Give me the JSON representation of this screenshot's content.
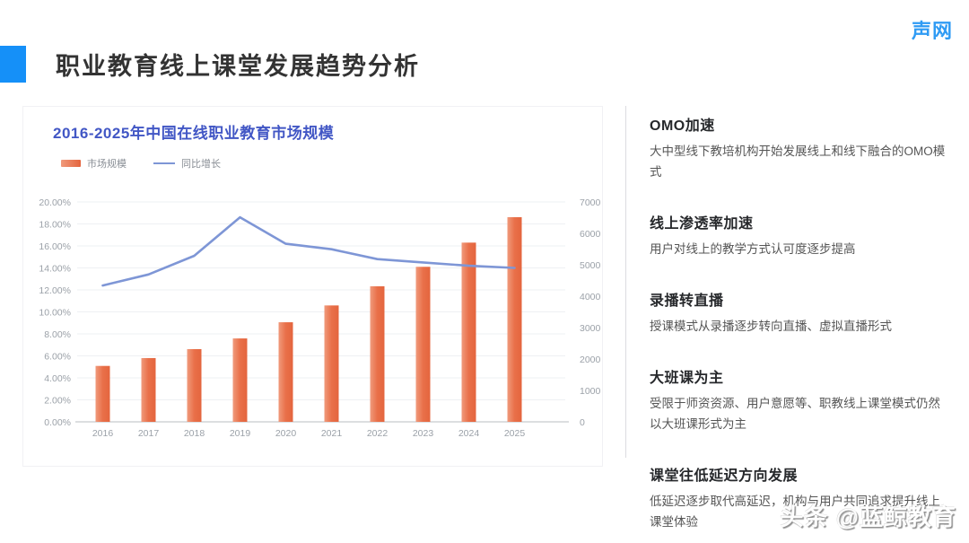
{
  "header": {
    "title": "职业教育线上课堂发展趋势分析",
    "logo": "声网"
  },
  "chart": {
    "title": "2016-2025年中国在线职业教育市场规模",
    "legend": [
      {
        "label": "市场规模",
        "type": "bar"
      },
      {
        "label": "同比增长",
        "type": "line"
      }
    ]
  },
  "chart_data": {
    "type": "bar",
    "title": "2016-2025年中国在线职业教育市场规模",
    "categories": [
      "2016",
      "2017",
      "2018",
      "2019",
      "2020",
      "2021",
      "2022",
      "2023",
      "2024",
      "2025"
    ],
    "series": [
      {
        "name": "市场规模",
        "type": "bar",
        "axis": "right",
        "values": [
          1780,
          2030,
          2315,
          2655,
          3170,
          3705,
          4315,
          4935,
          5705,
          6515
        ]
      },
      {
        "name": "同比增长",
        "type": "line",
        "axis": "left",
        "values": [
          12.4,
          13.4,
          15.1,
          18.6,
          16.2,
          15.7,
          14.8,
          14.5,
          14.2,
          14.0
        ]
      }
    ],
    "left_axis": {
      "min": 0,
      "max": 20,
      "step": 2,
      "suffix": "%",
      "decimals": 2
    },
    "right_axis": {
      "min": 0,
      "max": 7000,
      "step": 1000
    },
    "grid": true,
    "legend_position": "top-left"
  },
  "insights": [
    {
      "heading": "OMO加速",
      "body": "大中型线下教培机构开始发展线上和线下融合的OMO模式"
    },
    {
      "heading": "线上渗透率加速",
      "body": "用户对线上的教学方式认可度逐步提高"
    },
    {
      "heading": "录播转直播",
      "body": "授课模式从录播逐步转向直播、虚拟直播形式"
    },
    {
      "heading": "大班课为主",
      "body": "受限于师资资源、用户意愿等、职教线上课堂模式仍然以大班课形式为主"
    },
    {
      "heading": "课堂往低延迟方向发展",
      "body": "低延迟逐步取代高延迟，机构与用户共同追求提升线上课堂体验"
    }
  ],
  "watermark": "头条 @蓝鲸教育",
  "colors": {
    "accent_blue": "#1590f8",
    "logo_blue": "#2f9bf4",
    "chart_title_blue": "#4257c5",
    "bar_gradient": [
      "#f09a7c",
      "#e97049",
      "#e4653e"
    ],
    "line": "#7e96d6",
    "axis_text": "#9ba1a8",
    "grid_line": "#eef0f3",
    "axis_line": "#c6c9cd"
  }
}
